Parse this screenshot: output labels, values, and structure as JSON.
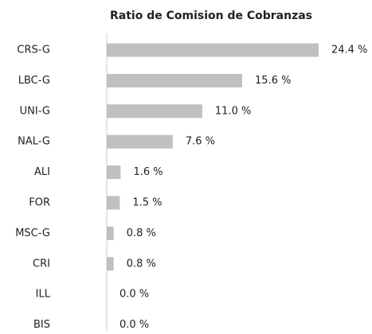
{
  "chart_data": {
    "type": "bar",
    "orientation": "horizontal",
    "title": "Ratio de Comision de Cobranzas",
    "categories": [
      "CRS-G",
      "LBC-G",
      "UNI-G",
      "NAL-G",
      "ALI",
      "FOR",
      "MSC-G",
      "CRI",
      "ILL",
      "BIS"
    ],
    "values": [
      24.4,
      15.6,
      11.0,
      7.6,
      1.6,
      1.5,
      0.8,
      0.8,
      0.0,
      0.0
    ],
    "value_labels": [
      "24.4 %",
      "15.6 %",
      "11.0 %",
      "7.6 %",
      "1.6 %",
      "1.5 %",
      "0.8 %",
      "0.8 %",
      "0.0 %",
      "0.0 %"
    ],
    "color": "#c0c0c0"
  }
}
